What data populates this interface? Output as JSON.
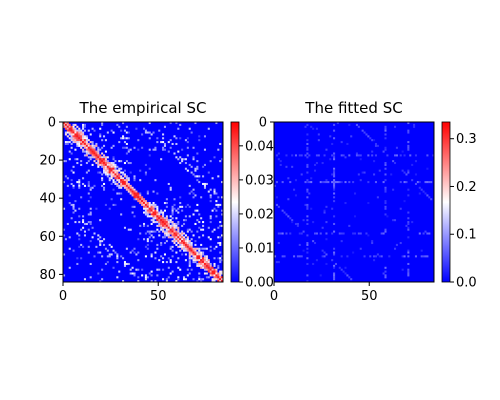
{
  "chart_data": [
    {
      "type": "heatmap",
      "title": "The empirical SC",
      "matrix_size": 84,
      "xticks": [
        "0",
        "50"
      ],
      "xtick_values": [
        0,
        50
      ],
      "yticks": [
        "0",
        "20",
        "40",
        "60",
        "80"
      ],
      "ytick_values": [
        0,
        20,
        40,
        60,
        80
      ],
      "colorbar_ticks": [
        "0.00",
        "0.01",
        "0.02",
        "0.03",
        "0.04"
      ],
      "colorbar_tick_values": [
        0.0,
        0.01,
        0.02,
        0.03,
        0.04
      ],
      "colorbar_range": [
        0,
        0.047
      ],
      "colormap": [
        "#0000ff",
        "#ffffff",
        "#ff0000"
      ],
      "diagonal_blocks": [
        [
          0,
          35
        ],
        [
          42,
          84
        ]
      ]
    },
    {
      "type": "heatmap",
      "title": "The fitted SC",
      "matrix_size": 84,
      "xticks": [
        "0",
        "50"
      ],
      "xtick_values": [
        0,
        50
      ],
      "colorbar_ticks": [
        "0.0",
        "0.1",
        "0.2",
        "0.3"
      ],
      "colorbar_tick_values": [
        0.0,
        0.1,
        0.2,
        0.3
      ],
      "colorbar_range": [
        0,
        0.335
      ],
      "colormap": [
        "#0000ff",
        "#ffffff",
        "#ff0000"
      ]
    }
  ]
}
